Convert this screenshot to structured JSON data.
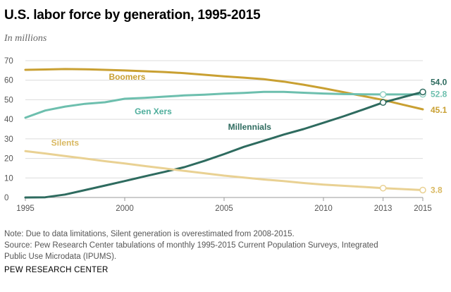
{
  "title": "U.S. labor force by generation, 1995-2015",
  "subtitle": "In millions",
  "note": "Note: Due to data limitations, Silent generation is overestimated from 2008-2015.",
  "source": "Source: Pew Research Center tabulations of monthly 1995-2015 Current Population Surveys, Integrated Public Use Microdata (IPUMS).",
  "brand": "PEW RESEARCH CENTER",
  "chart_data": {
    "type": "line",
    "title": "U.S. labor force by generation, 1995-2015",
    "ylabel": "In millions",
    "xlabel": "",
    "x": [
      1995,
      1996,
      1997,
      1998,
      1999,
      2000,
      2001,
      2002,
      2003,
      2004,
      2005,
      2006,
      2007,
      2008,
      2009,
      2010,
      2011,
      2012,
      2013,
      2014,
      2015
    ],
    "xticks": [
      "1995",
      "2000",
      "2005",
      "2010",
      "2013",
      "2015"
    ],
    "xtick_values": [
      1995,
      2000,
      2005,
      2010,
      2013,
      2015
    ],
    "yticks": [
      "0",
      "10",
      "20",
      "30",
      "40",
      "50",
      "60",
      "70"
    ],
    "ylim": [
      0,
      70
    ],
    "xlim": [
      1995,
      2015
    ],
    "grid": true,
    "series": [
      {
        "name": "Boomers",
        "color": "#c9a032",
        "values": [
          65.3,
          65.5,
          65.7,
          65.6,
          65.3,
          65.0,
          64.6,
          64.2,
          63.6,
          62.8,
          62.0,
          61.3,
          60.5,
          59.3,
          57.7,
          55.9,
          53.9,
          51.9,
          49.9,
          47.5,
          45.1
        ],
        "label_year": 1999.2,
        "label_value": 60.3,
        "markers": [],
        "end_label": "45.1"
      },
      {
        "name": "Gen Xers",
        "color": "#6dbfae",
        "values": [
          40.8,
          44.5,
          46.5,
          47.9,
          48.7,
          50.5,
          51.0,
          51.6,
          52.2,
          52.6,
          53.1,
          53.5,
          54.0,
          54.0,
          53.6,
          53.2,
          52.9,
          52.8,
          52.7,
          52.7,
          52.8
        ],
        "label_year": 2000.5,
        "label_value": 42.5,
        "markers": [
          2013,
          2015
        ],
        "end_label": "52.8"
      },
      {
        "name": "Millennials",
        "color": "#2e6b5f",
        "values": [
          0.0,
          0.1,
          1.5,
          3.8,
          6.1,
          8.4,
          10.8,
          13.1,
          15.5,
          18.7,
          22.2,
          25.9,
          29.0,
          32.2,
          35.0,
          38.2,
          41.5,
          45.0,
          48.6,
          51.3,
          54.0
        ],
        "label_year": 2005.2,
        "label_value": 34.7,
        "markers": [
          2013,
          2015
        ],
        "end_label": "54.0"
      },
      {
        "name": "Silents",
        "color": "#e9d193",
        "values": [
          23.7,
          22.5,
          21.2,
          19.9,
          18.6,
          17.4,
          16.1,
          14.9,
          13.6,
          12.4,
          11.2,
          10.2,
          9.2,
          8.4,
          7.4,
          6.6,
          6.0,
          5.4,
          4.8,
          4.3,
          3.8
        ],
        "label_year": 1996.3,
        "label_value": 26.5,
        "markers": [
          2013,
          2015
        ],
        "end_label": "3.8"
      }
    ]
  }
}
